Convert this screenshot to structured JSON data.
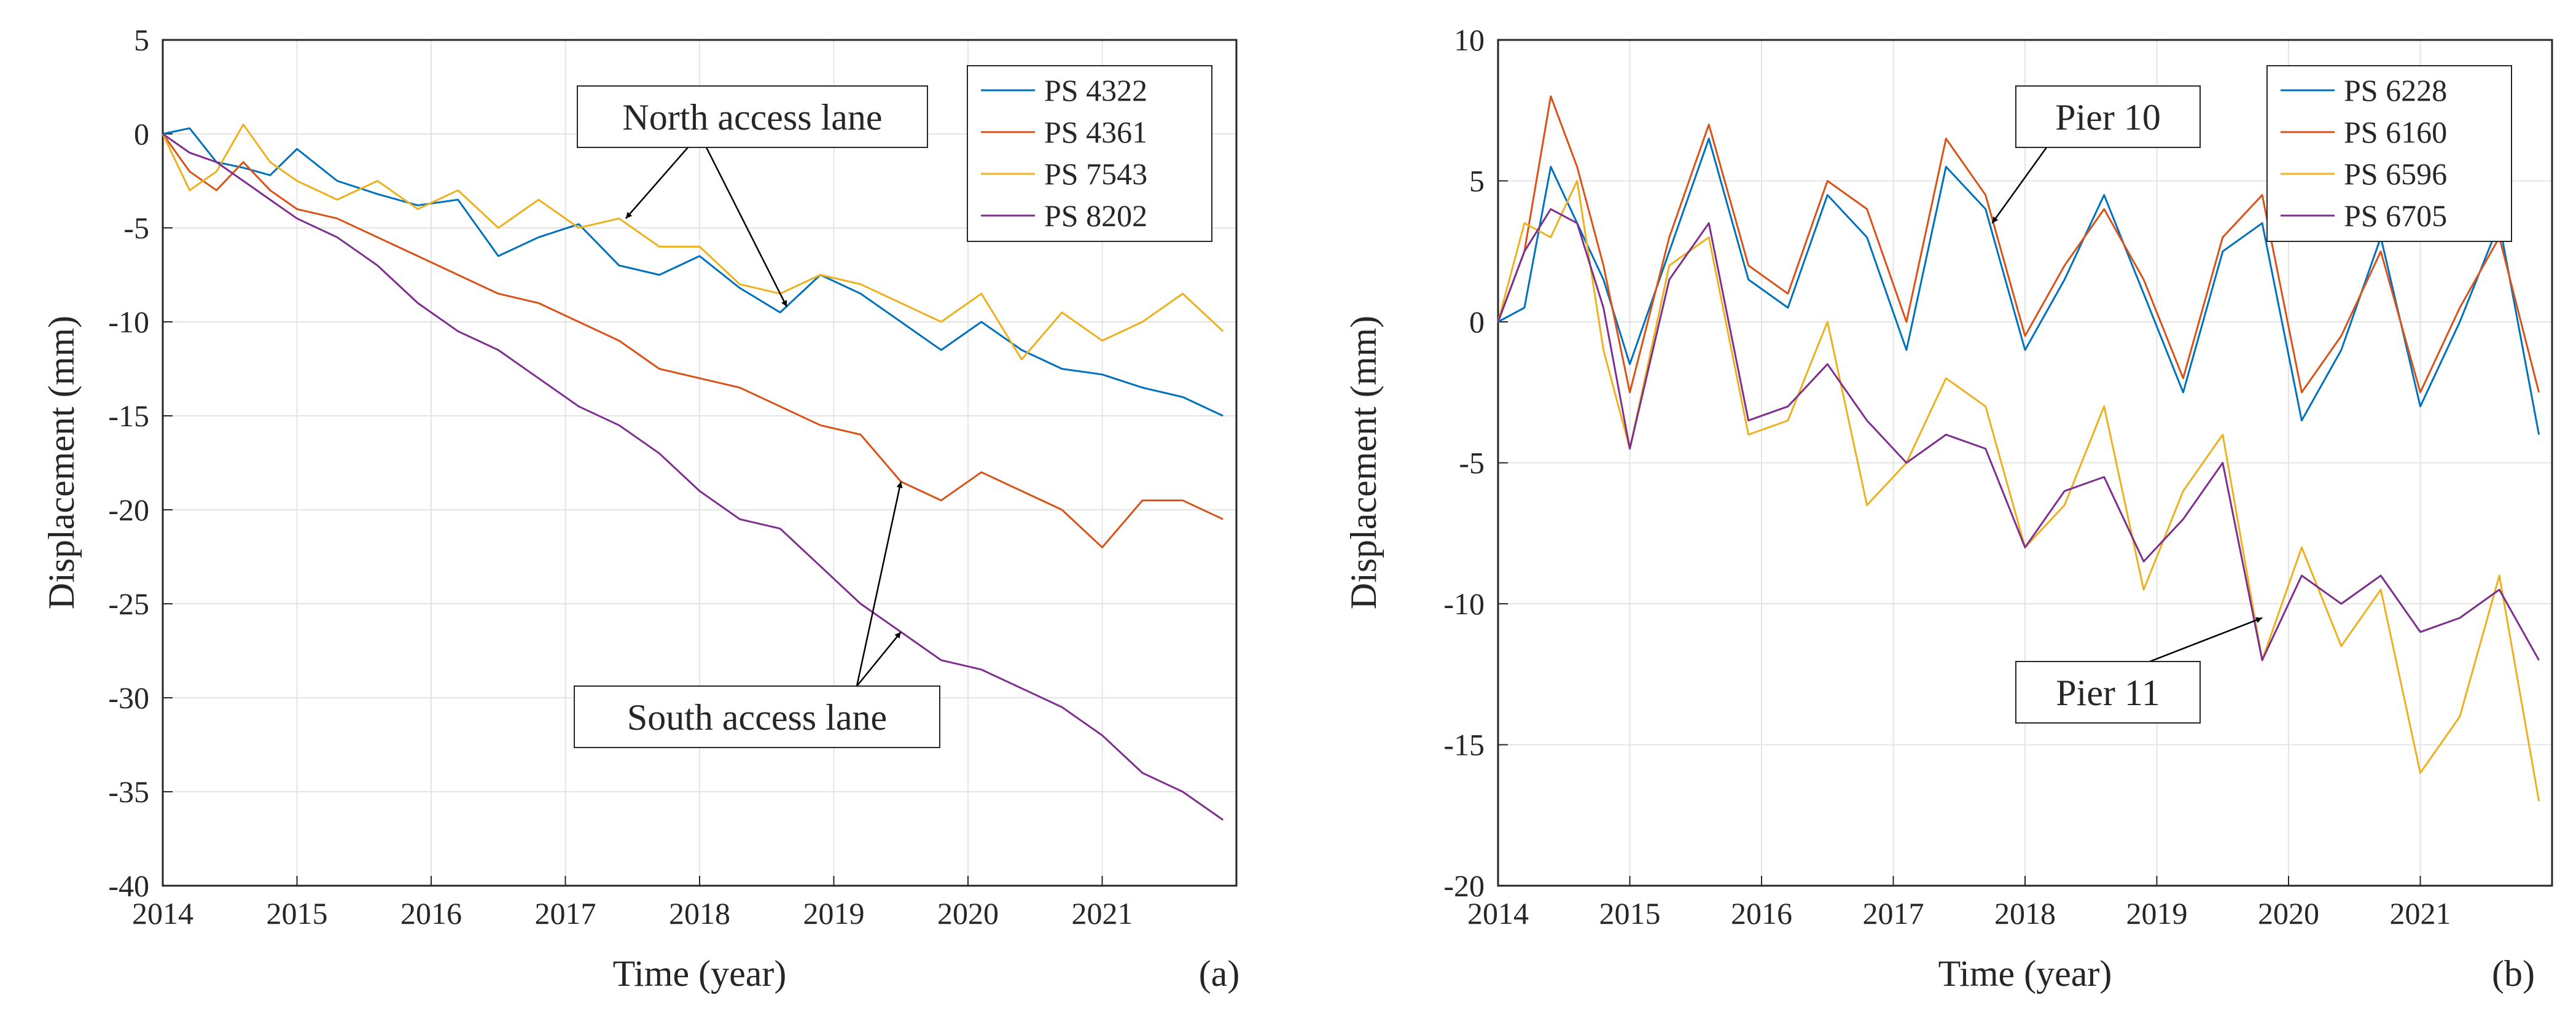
{
  "chart_data": [
    {
      "type": "line",
      "panel_label": "(a)",
      "xlabel": "Time (year)",
      "ylabel": "Displacement (mm)",
      "xlim": [
        2014,
        2022
      ],
      "ylim": [
        -40,
        5
      ],
      "xticks": [
        2014,
        2015,
        2016,
        2017,
        2018,
        2019,
        2020,
        2021
      ],
      "yticks": [
        5,
        0,
        -5,
        -10,
        -15,
        -20,
        -25,
        -30,
        -35,
        -40
      ],
      "grid": true,
      "legend_position": "top-right",
      "series": [
        {
          "name": "PS 4322",
          "color": "#0072BD",
          "x": [
            2014.0,
            2014.2,
            2014.4,
            2014.6,
            2014.8,
            2015.0,
            2015.3,
            2015.6,
            2015.9,
            2016.2,
            2016.5,
            2016.8,
            2017.1,
            2017.4,
            2017.7,
            2018.0,
            2018.3,
            2018.6,
            2018.9,
            2019.2,
            2019.5,
            2019.8,
            2020.1,
            2020.4,
            2020.7,
            2021.0,
            2021.3,
            2021.6,
            2021.9
          ],
          "y": [
            0,
            0.3,
            -1.5,
            -1.8,
            -2.2,
            -0.8,
            -2.5,
            -3.2,
            -3.8,
            -3.5,
            -6.5,
            -5.5,
            -4.8,
            -7.0,
            -7.5,
            -6.5,
            -8.2,
            -9.5,
            -7.5,
            -8.5,
            -10.0,
            -11.5,
            -10.0,
            -11.5,
            -12.5,
            -12.8,
            -13.5,
            -14.0,
            -15.0
          ]
        },
        {
          "name": "PS 4361",
          "color": "#D95319",
          "x": [
            2014.0,
            2014.2,
            2014.4,
            2014.6,
            2014.8,
            2015.0,
            2015.3,
            2015.6,
            2015.9,
            2016.2,
            2016.5,
            2016.8,
            2017.1,
            2017.4,
            2017.7,
            2018.0,
            2018.3,
            2018.6,
            2018.9,
            2019.2,
            2019.5,
            2019.8,
            2020.1,
            2020.4,
            2020.7,
            2021.0,
            2021.3,
            2021.6,
            2021.9
          ],
          "y": [
            0,
            -2.0,
            -3.0,
            -1.5,
            -3.0,
            -4.0,
            -4.5,
            -5.5,
            -6.5,
            -7.5,
            -8.5,
            -9.0,
            -10.0,
            -11.0,
            -12.5,
            -13.0,
            -13.5,
            -14.5,
            -15.5,
            -16.0,
            -18.5,
            -19.5,
            -18.0,
            -19.0,
            -20.0,
            -22.0,
            -19.5,
            -19.5,
            -20.5
          ]
        },
        {
          "name": "PS 7543",
          "color": "#EDB120",
          "x": [
            2014.0,
            2014.2,
            2014.4,
            2014.6,
            2014.8,
            2015.0,
            2015.3,
            2015.6,
            2015.9,
            2016.2,
            2016.5,
            2016.8,
            2017.1,
            2017.4,
            2017.7,
            2018.0,
            2018.3,
            2018.6,
            2018.9,
            2019.2,
            2019.5,
            2019.8,
            2020.1,
            2020.4,
            2020.7,
            2021.0,
            2021.3,
            2021.6,
            2021.9
          ],
          "y": [
            0,
            -3.0,
            -2.0,
            0.5,
            -1.5,
            -2.5,
            -3.5,
            -2.5,
            -4.0,
            -3.0,
            -5.0,
            -3.5,
            -5.0,
            -4.5,
            -6.0,
            -6.0,
            -8.0,
            -8.5,
            -7.5,
            -8.0,
            -9.0,
            -10.0,
            -8.5,
            -12.0,
            -9.5,
            -11.0,
            -10.0,
            -8.5,
            -10.5
          ]
        },
        {
          "name": "PS 8202",
          "color": "#7E2F8E",
          "x": [
            2014.0,
            2014.2,
            2014.4,
            2014.6,
            2014.8,
            2015.0,
            2015.3,
            2015.6,
            2015.9,
            2016.2,
            2016.5,
            2016.8,
            2017.1,
            2017.4,
            2017.7,
            2018.0,
            2018.3,
            2018.6,
            2018.9,
            2019.2,
            2019.5,
            2019.8,
            2020.1,
            2020.4,
            2020.7,
            2021.0,
            2021.3,
            2021.6,
            2021.9
          ],
          "y": [
            0,
            -1.0,
            -1.5,
            -2.5,
            -3.5,
            -4.5,
            -5.5,
            -7.0,
            -9.0,
            -10.5,
            -11.5,
            -13.0,
            -14.5,
            -15.5,
            -17.0,
            -19.0,
            -20.5,
            -21.0,
            -23.0,
            -25.0,
            -26.5,
            -28.0,
            -28.5,
            -29.5,
            -30.5,
            -32.0,
            -34.0,
            -35.0,
            -36.5
          ]
        }
      ],
      "annotations": [
        {
          "text": "North access lane",
          "arrows_to": [
            [
              2017.45,
              -4.5
            ],
            [
              2018.65,
              -9.2
            ]
          ]
        },
        {
          "text": "South access lane",
          "arrows_to": [
            [
              2019.5,
              -18.5
            ],
            [
              2019.5,
              -26.5
            ]
          ]
        }
      ]
    },
    {
      "type": "line",
      "panel_label": "(b)",
      "xlabel": "Time (year)",
      "ylabel": "Displacement (mm)",
      "xlim": [
        2014,
        2022
      ],
      "ylim": [
        -20,
        10
      ],
      "xticks": [
        2014,
        2015,
        2016,
        2017,
        2018,
        2019,
        2020,
        2021
      ],
      "yticks": [
        10,
        5,
        0,
        -5,
        -10,
        -15,
        -20
      ],
      "grid": true,
      "legend_position": "top-right",
      "series": [
        {
          "name": "PS 6228",
          "color": "#0072BD",
          "x": [
            2014.0,
            2014.2,
            2014.4,
            2014.6,
            2014.8,
            2015.0,
            2015.3,
            2015.6,
            2015.9,
            2016.2,
            2016.5,
            2016.8,
            2017.1,
            2017.4,
            2017.7,
            2018.0,
            2018.3,
            2018.6,
            2018.9,
            2019.2,
            2019.5,
            2019.8,
            2020.1,
            2020.4,
            2020.7,
            2021.0,
            2021.3,
            2021.6,
            2021.9
          ],
          "y": [
            0,
            0.5,
            5.5,
            3.5,
            1.5,
            -1.5,
            2.5,
            6.5,
            1.5,
            0.5,
            4.5,
            3.0,
            -1.0,
            5.5,
            4.0,
            -1.0,
            1.5,
            4.5,
            1.0,
            -2.5,
            2.5,
            3.5,
            -3.5,
            -1.0,
            3.0,
            -3.0,
            0.0,
            3.5,
            -4.0
          ]
        },
        {
          "name": "PS 6160",
          "color": "#D95319",
          "x": [
            2014.0,
            2014.2,
            2014.4,
            2014.6,
            2014.8,
            2015.0,
            2015.3,
            2015.6,
            2015.9,
            2016.2,
            2016.5,
            2016.8,
            2017.1,
            2017.4,
            2017.7,
            2018.0,
            2018.3,
            2018.6,
            2018.9,
            2019.2,
            2019.5,
            2019.8,
            2020.1,
            2020.4,
            2020.7,
            2021.0,
            2021.3,
            2021.6,
            2021.9
          ],
          "y": [
            0,
            2.5,
            8.0,
            5.5,
            2.0,
            -2.5,
            3.0,
            7.0,
            2.0,
            1.0,
            5.0,
            4.0,
            0.0,
            6.5,
            4.5,
            -0.5,
            2.0,
            4.0,
            1.5,
            -2.0,
            3.0,
            4.5,
            -2.5,
            -0.5,
            2.5,
            -2.5,
            0.5,
            3.0,
            -2.5
          ]
        },
        {
          "name": "PS 6596",
          "color": "#EDB120",
          "x": [
            2014.0,
            2014.2,
            2014.4,
            2014.6,
            2014.8,
            2015.0,
            2015.3,
            2015.6,
            2015.9,
            2016.2,
            2016.5,
            2016.8,
            2017.1,
            2017.4,
            2017.7,
            2018.0,
            2018.3,
            2018.6,
            2018.9,
            2019.2,
            2019.5,
            2019.8,
            2020.1,
            2020.4,
            2020.7,
            2021.0,
            2021.3,
            2021.6,
            2021.9
          ],
          "y": [
            0,
            3.5,
            3.0,
            5.0,
            -1.0,
            -4.5,
            2.0,
            3.0,
            -4.0,
            -3.5,
            0.0,
            -6.5,
            -5.0,
            -2.0,
            -3.0,
            -8.0,
            -6.5,
            -3.0,
            -9.5,
            -6.0,
            -4.0,
            -12.0,
            -8.0,
            -11.5,
            -9.5,
            -16.0,
            -14.0,
            -9.0,
            -17.0
          ]
        },
        {
          "name": "PS 6705",
          "color": "#7E2F8E",
          "x": [
            2014.0,
            2014.2,
            2014.4,
            2014.6,
            2014.8,
            2015.0,
            2015.3,
            2015.6,
            2015.9,
            2016.2,
            2016.5,
            2016.8,
            2017.1,
            2017.4,
            2017.7,
            2018.0,
            2018.3,
            2018.6,
            2018.9,
            2019.2,
            2019.5,
            2019.8,
            2020.1,
            2020.4,
            2020.7,
            2021.0,
            2021.3,
            2021.6,
            2021.9
          ],
          "y": [
            0,
            2.5,
            4.0,
            3.5,
            0.5,
            -4.5,
            1.5,
            3.5,
            -3.5,
            -3.0,
            -1.5,
            -3.5,
            -5.0,
            -4.0,
            -4.5,
            -8.0,
            -6.0,
            -5.5,
            -8.5,
            -7.0,
            -5.0,
            -12.0,
            -9.0,
            -10.0,
            -9.0,
            -11.0,
            -10.5,
            -9.5,
            -12.0
          ]
        }
      ],
      "annotations": [
        {
          "text": "Pier 10",
          "arrows_to": [
            [
              2017.75,
              3.5
            ]
          ]
        },
        {
          "text": "Pier 11",
          "arrows_to": [
            [
              2019.8,
              -10.5
            ]
          ]
        }
      ]
    }
  ]
}
